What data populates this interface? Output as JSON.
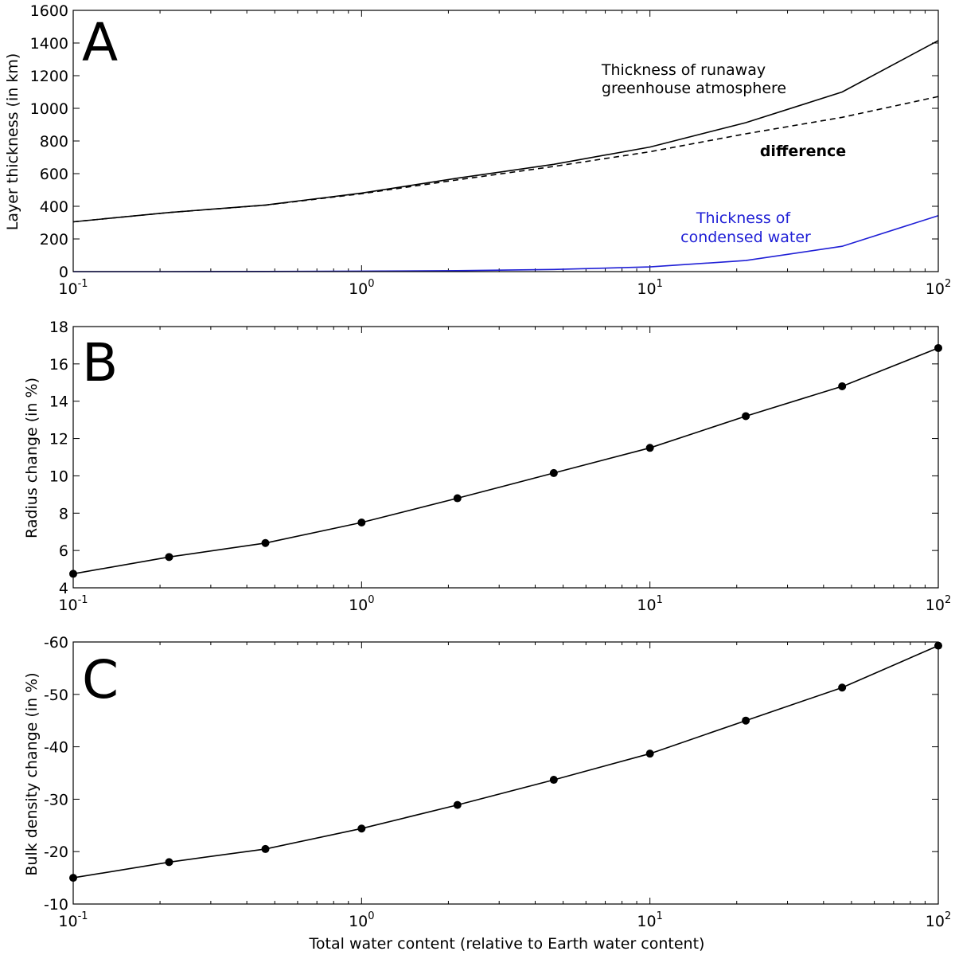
{
  "chart_data": [
    {
      "type": "line",
      "panel": "A",
      "xscale": "log",
      "xlim": [
        0.1,
        100
      ],
      "ylim": [
        0,
        1600
      ],
      "yticks": [
        0,
        200,
        400,
        600,
        800,
        1000,
        1200,
        1400,
        1600
      ],
      "xticks": [
        {
          "base": "10",
          "exp": "-1"
        },
        {
          "base": "10",
          "exp": "0"
        },
        {
          "base": "10",
          "exp": "1"
        },
        {
          "base": "10",
          "exp": "2"
        }
      ],
      "ylabel": "Layer thickness (in km)",
      "xlabel": "",
      "x": [
        0.1,
        0.215,
        0.464,
        1.0,
        2.15,
        4.64,
        10.0,
        21.5,
        46.4,
        100.0
      ],
      "series": [
        {
          "name": "Thickness of runaway greenhouse atmosphere",
          "style": "solid",
          "color": "#000000",
          "values": [
            305,
            362,
            408,
            481,
            572,
            657,
            763,
            912,
            1100,
            1415
          ]
        },
        {
          "name": "difference",
          "style": "dashed",
          "color": "#000000",
          "values": [
            305,
            362,
            407,
            477,
            562,
            644,
            734,
            844,
            945,
            1072
          ]
        },
        {
          "name": "Thickness of condensed water",
          "style": "solid",
          "color": "#1f1fd6",
          "values": [
            0,
            0,
            1,
            3,
            6,
            13,
            29,
            68,
            155,
            343
          ]
        }
      ],
      "annotations": [
        {
          "id": "runaway",
          "lines": [
            "Thickness of runaway",
            "greenhouse atmosphere"
          ],
          "color": "#000000",
          "bold": false
        },
        {
          "id": "difference",
          "lines": [
            "difference"
          ],
          "color": "#000000",
          "bold": true
        },
        {
          "id": "water",
          "lines": [
            "Thickness of",
            "condensed water"
          ],
          "color": "#1f1fd6",
          "bold": false
        }
      ]
    },
    {
      "type": "line",
      "panel": "B",
      "xscale": "log",
      "xlim": [
        0.1,
        100
      ],
      "ylim": [
        4,
        18
      ],
      "yticks": [
        4,
        6,
        8,
        10,
        12,
        14,
        16,
        18
      ],
      "xticks": [
        {
          "base": "10",
          "exp": "-1"
        },
        {
          "base": "10",
          "exp": "0"
        },
        {
          "base": "10",
          "exp": "1"
        },
        {
          "base": "10",
          "exp": "2"
        }
      ],
      "ylabel": "Radius change (in %)",
      "xlabel": "",
      "markers": true,
      "x": [
        0.1,
        0.215,
        0.464,
        1.0,
        2.15,
        4.64,
        10.0,
        21.5,
        46.4,
        100.0
      ],
      "series": [
        {
          "name": "Radius change",
          "style": "solid",
          "color": "#000000",
          "values": [
            4.75,
            5.65,
            6.4,
            7.5,
            8.8,
            10.15,
            11.5,
            13.2,
            14.8,
            16.85
          ]
        }
      ]
    },
    {
      "type": "line",
      "panel": "C",
      "xscale": "log",
      "xlim": [
        0.1,
        100
      ],
      "ylim": [
        -10,
        -60
      ],
      "yticks": [
        -10,
        -20,
        -30,
        -40,
        -50,
        -60
      ],
      "xticks": [
        {
          "base": "10",
          "exp": "-1"
        },
        {
          "base": "10",
          "exp": "0"
        },
        {
          "base": "10",
          "exp": "1"
        },
        {
          "base": "10",
          "exp": "2"
        }
      ],
      "ylabel": "Bulk density change (in %)",
      "xlabel": "Total water content (relative to Earth water content)",
      "markers": true,
      "x": [
        0.1,
        0.215,
        0.464,
        1.0,
        2.15,
        4.64,
        10.0,
        21.5,
        46.4,
        100.0
      ],
      "series": [
        {
          "name": "Bulk density change",
          "style": "solid",
          "color": "#000000",
          "values": [
            -15.0,
            -18.0,
            -20.5,
            -24.4,
            -28.9,
            -33.7,
            -38.7,
            -45.0,
            -51.3,
            -59.3
          ]
        }
      ]
    }
  ]
}
